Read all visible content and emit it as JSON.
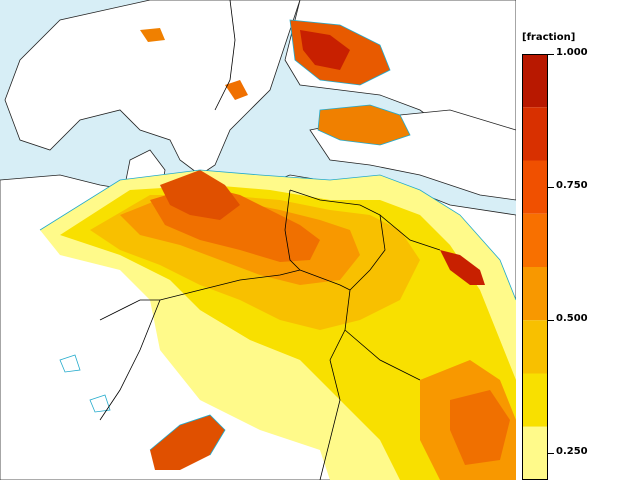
{
  "legend": {
    "unit_label": "[fraction]",
    "ticks": [
      {
        "label": "1.000",
        "value": 1.0
      },
      {
        "label": "0.750",
        "value": 0.75
      },
      {
        "label": "0.500",
        "value": 0.5
      },
      {
        "label": "0.250",
        "value": 0.25
      }
    ],
    "bands": [
      {
        "value": 0.95,
        "color": "#b81800"
      },
      {
        "value": 0.85,
        "color": "#d83000"
      },
      {
        "value": 0.75,
        "color": "#f05000"
      },
      {
        "value": 0.65,
        "color": "#f87000"
      },
      {
        "value": 0.55,
        "color": "#f89800"
      },
      {
        "value": 0.45,
        "color": "#f8c000"
      },
      {
        "value": 0.35,
        "color": "#f8e000"
      },
      {
        "value": 0.25,
        "color": "#fffa8a"
      }
    ]
  },
  "map": {
    "land_color": "#ffffff",
    "sea_color": "#d7eef6",
    "border_color": "#000000",
    "contour_color": "#22aacc"
  }
}
